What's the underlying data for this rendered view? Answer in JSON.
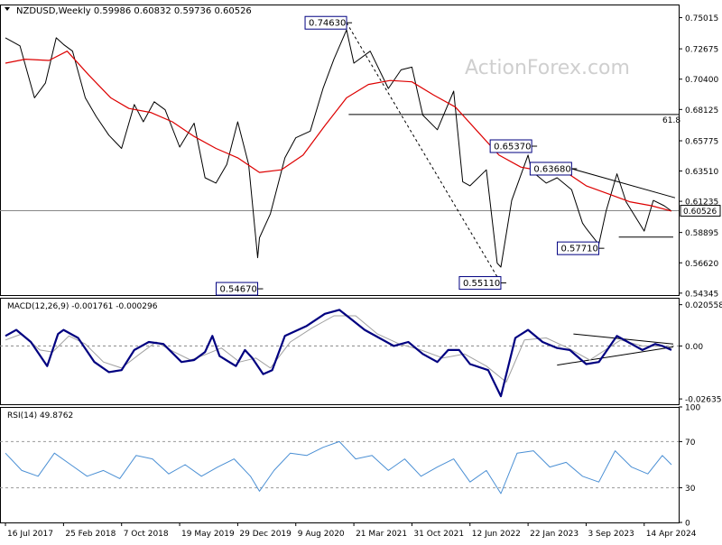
{
  "header": {
    "title": "NZDUSD,Weekly  0.59986 0.60832 0.59736 0.60526"
  },
  "watermark": "ActionForex.com",
  "colors": {
    "price_line": "#000000",
    "ma_line": "#dd0000",
    "macd_line": "#000080",
    "signal_line": "#a0a0a0",
    "rsi_line": "#4a8fd4",
    "label_border": "#000080",
    "current_price_bg": "#ffffff",
    "frame": "#000000",
    "level_line": "#888888"
  },
  "x_axis": {
    "ticks": [
      "16 Jul 2017",
      "25 Feb 2018",
      "7 Oct 2018",
      "19 May 2019",
      "29 Dec 2019",
      "9 Aug 2020",
      "21 Mar 2021",
      "31 Oct 2021",
      "12 Jun 2022",
      "22 Jan 2023",
      "3 Sep 2023",
      "14 Apr 2024"
    ]
  },
  "chart_data": [
    {
      "type": "line",
      "panel": "price",
      "title": "NZDUSD,Weekly  0.59986 0.60832 0.59736 0.60526",
      "ylim": [
        0.542,
        0.76
      ],
      "y_ticks": [
        "0.75015",
        "0.72675",
        "0.70400",
        "0.68125",
        "0.65775",
        "0.63510",
        "0.61235",
        "0.58895",
        "0.56620",
        "0.54345"
      ],
      "current_price": "0.60526",
      "fib_label": "61.8",
      "fib_level": 0.6775,
      "annotations": [
        {
          "text": "0.74630",
          "x": "2021-02-21",
          "y": 0.7463
        },
        {
          "text": "0.54670",
          "x": "2020-03-15",
          "y": 0.5467
        },
        {
          "text": "0.55110",
          "x": "2022-10-09",
          "y": 0.5511
        },
        {
          "text": "0.65370",
          "x": "2023-02-05",
          "y": 0.6537
        },
        {
          "text": "0.63680",
          "x": "2023-07-09",
          "y": 0.6368
        },
        {
          "text": "0.57710",
          "x": "2023-10-22",
          "y": 0.5771
        }
      ],
      "series": [
        {
          "name": "",
          "kind": "price",
          "points": [
            [
              "2017-07-16",
              0.735
            ],
            [
              "2017-09-10",
              0.729
            ],
            [
              "2017-11-05",
              0.69
            ],
            [
              "2017-12-17",
              0.701
            ],
            [
              "2018-01-28",
              0.735
            ],
            [
              "2018-02-25",
              0.73
            ],
            [
              "2018-04-01",
              0.725
            ],
            [
              "2018-05-20",
              0.69
            ],
            [
              "2018-07-01",
              0.676
            ],
            [
              "2018-08-19",
              0.662
            ],
            [
              "2018-10-07",
              0.652
            ],
            [
              "2018-11-25",
              0.685
            ],
            [
              "2018-12-30",
              0.672
            ],
            [
              "2019-02-10",
              0.687
            ],
            [
              "2019-03-24",
              0.681
            ],
            [
              "2019-05-19",
              0.653
            ],
            [
              "2019-07-14",
              0.671
            ],
            [
              "2019-08-25",
              0.63
            ],
            [
              "2019-10-06",
              0.626
            ],
            [
              "2019-11-17",
              0.64
            ],
            [
              "2019-12-29",
              0.672
            ],
            [
              "2020-02-09",
              0.64
            ],
            [
              "2020-03-15",
              0.57
            ],
            [
              "2020-03-22",
              0.585
            ],
            [
              "2020-05-03",
              0.603
            ],
            [
              "2020-06-28",
              0.645
            ],
            [
              "2020-08-09",
              0.66
            ],
            [
              "2020-10-04",
              0.665
            ],
            [
              "2020-11-22",
              0.697
            ],
            [
              "2021-01-03",
              0.719
            ],
            [
              "2021-02-21",
              0.741
            ],
            [
              "2021-03-21",
              0.716
            ],
            [
              "2021-05-23",
              0.725
            ],
            [
              "2021-08-01",
              0.697
            ],
            [
              "2021-09-19",
              0.711
            ],
            [
              "2021-10-31",
              0.713
            ],
            [
              "2021-12-12",
              0.677
            ],
            [
              "2022-02-06",
              0.666
            ],
            [
              "2022-04-10",
              0.695
            ],
            [
              "2022-05-15",
              0.627
            ],
            [
              "2022-06-12",
              0.624
            ],
            [
              "2022-08-14",
              0.636
            ],
            [
              "2022-09-25",
              0.566
            ],
            [
              "2022-10-09",
              0.563
            ],
            [
              "2022-11-20",
              0.613
            ],
            [
              "2023-01-22",
              0.647
            ],
            [
              "2023-02-05",
              0.635
            ],
            [
              "2023-04-02",
              0.626
            ],
            [
              "2023-05-14",
              0.63
            ],
            [
              "2023-07-09",
              0.621
            ],
            [
              "2023-08-20",
              0.596
            ],
            [
              "2023-09-03",
              0.592
            ],
            [
              "2023-10-22",
              0.58
            ],
            [
              "2023-11-19",
              0.605
            ],
            [
              "2023-12-31",
              0.633
            ],
            [
              "2024-02-04",
              0.612
            ],
            [
              "2024-04-14",
              0.59
            ],
            [
              "2024-05-19",
              0.613
            ],
            [
              "2024-06-30",
              0.609
            ],
            [
              "2024-07-28",
              0.605
            ]
          ]
        },
        {
          "name": "",
          "kind": "moving_average",
          "points": [
            [
              "2017-07-16",
              0.716
            ],
            [
              "2017-10-01",
              0.719
            ],
            [
              "2017-12-31",
              0.718
            ],
            [
              "2018-03-11",
              0.725
            ],
            [
              "2018-06-03",
              0.707
            ],
            [
              "2018-08-26",
              0.69
            ],
            [
              "2018-11-04",
              0.682
            ],
            [
              "2019-01-27",
              0.679
            ],
            [
              "2019-04-21",
              0.672
            ],
            [
              "2019-07-14",
              0.661
            ],
            [
              "2019-10-06",
              0.652
            ],
            [
              "2019-12-29",
              0.645
            ],
            [
              "2020-03-22",
              0.634
            ],
            [
              "2020-06-14",
              0.636
            ],
            [
              "2020-09-06",
              0.647
            ],
            [
              "2020-11-29",
              0.669
            ],
            [
              "2021-02-21",
              0.69
            ],
            [
              "2021-05-16",
              0.7
            ],
            [
              "2021-08-08",
              0.703
            ],
            [
              "2021-10-31",
              0.702
            ],
            [
              "2022-01-23",
              0.692
            ],
            [
              "2022-04-17",
              0.683
            ],
            [
              "2022-07-10",
              0.665
            ],
            [
              "2022-10-02",
              0.647
            ],
            [
              "2022-12-25",
              0.638
            ],
            [
              "2023-03-19",
              0.635
            ],
            [
              "2023-06-11",
              0.635
            ],
            [
              "2023-09-03",
              0.624
            ],
            [
              "2023-11-26",
              0.618
            ],
            [
              "2024-02-18",
              0.612
            ],
            [
              "2024-05-12",
              0.609
            ],
            [
              "2024-07-28",
              0.605
            ]
          ]
        }
      ]
    },
    {
      "type": "line",
      "panel": "macd",
      "title": "MACD(12,26,9) -0.001761 -0.000296",
      "ylim": [
        -0.029,
        0.024
      ],
      "y_ticks": [
        "0.020558",
        "0.00",
        "-0.026357"
      ],
      "series": [
        {
          "name": "",
          "kind": "macd",
          "points": [
            [
              "2017-07-16",
              0.005
            ],
            [
              "2017-08-27",
              0.008
            ],
            [
              "2017-10-22",
              0.002
            ],
            [
              "2017-12-24",
              -0.01
            ],
            [
              "2018-02-04",
              0.006
            ],
            [
              "2018-02-25",
              0.008
            ],
            [
              "2018-04-22",
              0.004
            ],
            [
              "2018-06-24",
              -0.008
            ],
            [
              "2018-08-19",
              -0.013
            ],
            [
              "2018-10-07",
              -0.012
            ],
            [
              "2018-11-25",
              -0.002
            ],
            [
              "2019-01-20",
              0.002
            ],
            [
              "2019-03-17",
              0.001
            ],
            [
              "2019-05-26",
              -0.008
            ],
            [
              "2019-07-14",
              -0.007
            ],
            [
              "2019-08-25",
              -0.003
            ],
            [
              "2019-09-22",
              0.005
            ],
            [
              "2019-10-20",
              -0.005
            ],
            [
              "2019-12-22",
              -0.01
            ],
            [
              "2020-01-26",
              -0.002
            ],
            [
              "2020-02-23",
              -0.006
            ],
            [
              "2020-04-05",
              -0.014
            ],
            [
              "2020-05-10",
              -0.012
            ],
            [
              "2020-06-28",
              0.005
            ],
            [
              "2020-09-20",
              0.01
            ],
            [
              "2020-11-29",
              0.016
            ],
            [
              "2021-01-24",
              0.018
            ],
            [
              "2021-03-14",
              0.013
            ],
            [
              "2021-05-02",
              0.008
            ],
            [
              "2021-06-27",
              0.004
            ],
            [
              "2021-08-22",
              0.0
            ],
            [
              "2021-10-17",
              0.002
            ],
            [
              "2021-12-12",
              -0.004
            ],
            [
              "2022-02-06",
              -0.008
            ],
            [
              "2022-03-20",
              -0.002
            ],
            [
              "2022-05-01",
              -0.002
            ],
            [
              "2022-06-12",
              -0.009
            ],
            [
              "2022-08-21",
              -0.012
            ],
            [
              "2022-10-09",
              -0.025
            ],
            [
              "2022-12-04",
              0.004
            ],
            [
              "2023-01-22",
              0.008
            ],
            [
              "2023-03-19",
              0.002
            ],
            [
              "2023-05-14",
              -0.001
            ],
            [
              "2023-07-02",
              -0.002
            ],
            [
              "2023-09-03",
              -0.009
            ],
            [
              "2023-10-22",
              -0.008
            ],
            [
              "2023-12-31",
              0.005
            ],
            [
              "2024-02-11",
              0.002
            ],
            [
              "2024-04-07",
              -0.002
            ],
            [
              "2024-05-26",
              0.001
            ],
            [
              "2024-06-23",
              0.0
            ],
            [
              "2024-07-28",
              -0.002
            ]
          ]
        },
        {
          "name": "",
          "kind": "signal",
          "points": [
            [
              "2017-07-16",
              0.003
            ],
            [
              "2017-09-17",
              0.006
            ],
            [
              "2017-11-26",
              -0.002
            ],
            [
              "2018-01-14",
              -0.003
            ],
            [
              "2018-03-18",
              0.005
            ],
            [
              "2018-05-20",
              0.001
            ],
            [
              "2018-07-29",
              -0.008
            ],
            [
              "2018-10-07",
              -0.011
            ],
            [
              "2018-12-16",
              -0.004
            ],
            [
              "2019-02-17",
              0.002
            ],
            [
              "2019-04-28",
              -0.003
            ],
            [
              "2019-06-30",
              -0.007
            ],
            [
              "2019-09-01",
              -0.004
            ],
            [
              "2019-10-27",
              -0.001
            ],
            [
              "2020-01-05",
              -0.008
            ],
            [
              "2020-03-08",
              -0.006
            ],
            [
              "2020-05-03",
              -0.011
            ],
            [
              "2020-07-19",
              0.002
            ],
            [
              "2020-10-11",
              0.009
            ],
            [
              "2021-01-03",
              0.015
            ],
            [
              "2021-03-28",
              0.015
            ],
            [
              "2021-06-20",
              0.006
            ],
            [
              "2021-09-12",
              0.001
            ],
            [
              "2021-12-05",
              -0.002
            ],
            [
              "2022-02-27",
              -0.006
            ],
            [
              "2022-05-22",
              -0.004
            ],
            [
              "2022-08-14",
              -0.01
            ],
            [
              "2022-10-30",
              -0.018
            ],
            [
              "2023-01-08",
              0.003
            ],
            [
              "2023-04-02",
              0.004
            ],
            [
              "2023-06-25",
              -0.001
            ],
            [
              "2023-09-17",
              -0.007
            ],
            [
              "2024-01-14",
              0.003
            ],
            [
              "2024-04-07",
              0.0
            ],
            [
              "2024-07-28",
              -0.0003
            ]
          ]
        }
      ]
    },
    {
      "type": "line",
      "panel": "rsi",
      "title": "RSI(14) 49.8762",
      "ylim": [
        0,
        100
      ],
      "y_ticks": [
        "100",
        "70",
        "30",
        "0"
      ],
      "levels": [
        70,
        30
      ],
      "series": [
        {
          "name": "",
          "kind": "rsi",
          "points": [
            [
              "2017-07-16",
              60
            ],
            [
              "2017-09-17",
              45
            ],
            [
              "2017-11-19",
              40
            ],
            [
              "2018-01-21",
              60
            ],
            [
              "2018-03-25",
              50
            ],
            [
              "2018-05-27",
              40
            ],
            [
              "2018-07-29",
              45
            ],
            [
              "2018-09-30",
              38
            ],
            [
              "2018-12-02",
              58
            ],
            [
              "2019-02-03",
              55
            ],
            [
              "2019-04-07",
              42
            ],
            [
              "2019-06-09",
              50
            ],
            [
              "2019-08-11",
              40
            ],
            [
              "2019-10-13",
              48
            ],
            [
              "2019-12-15",
              55
            ],
            [
              "2020-02-16",
              40
            ],
            [
              "2020-03-22",
              27
            ],
            [
              "2020-05-17",
              45
            ],
            [
              "2020-07-19",
              60
            ],
            [
              "2020-09-20",
              58
            ],
            [
              "2020-11-22",
              65
            ],
            [
              "2021-01-24",
              70
            ],
            [
              "2021-03-28",
              55
            ],
            [
              "2021-05-30",
              58
            ],
            [
              "2021-08-01",
              45
            ],
            [
              "2021-10-03",
              55
            ],
            [
              "2021-12-05",
              40
            ],
            [
              "2022-02-06",
              48
            ],
            [
              "2022-04-10",
              55
            ],
            [
              "2022-06-12",
              35
            ],
            [
              "2022-08-14",
              45
            ],
            [
              "2022-10-09",
              25
            ],
            [
              "2022-12-11",
              60
            ],
            [
              "2023-02-12",
              62
            ],
            [
              "2023-04-16",
              48
            ],
            [
              "2023-06-18",
              52
            ],
            [
              "2023-08-20",
              40
            ],
            [
              "2023-10-22",
              35
            ],
            [
              "2023-12-24",
              62
            ],
            [
              "2024-02-25",
              48
            ],
            [
              "2024-04-28",
              42
            ],
            [
              "2024-06-23",
              58
            ],
            [
              "2024-07-28",
              50
            ]
          ]
        }
      ]
    }
  ]
}
